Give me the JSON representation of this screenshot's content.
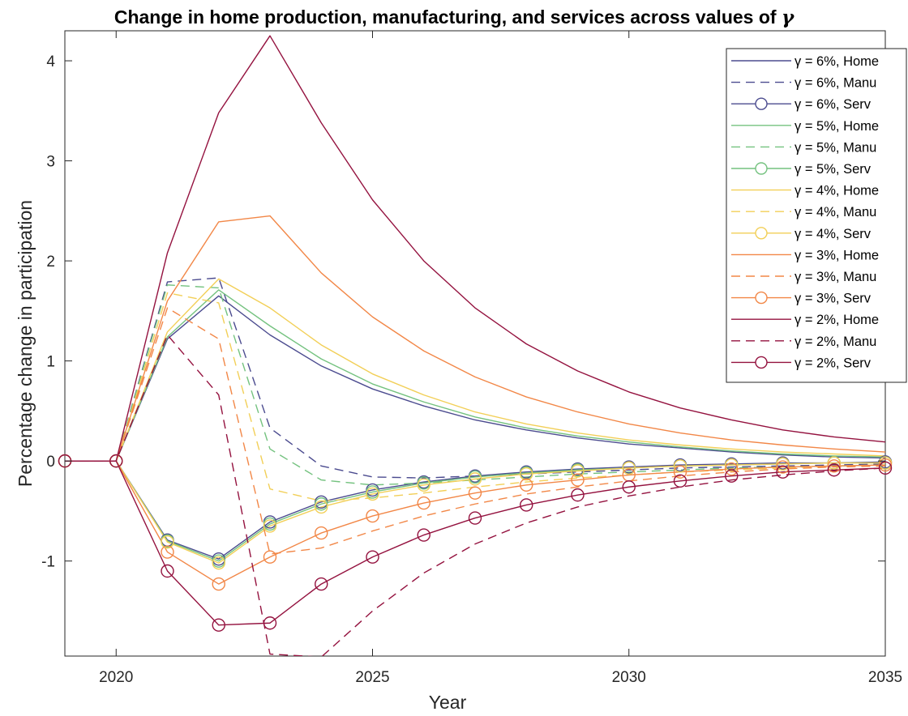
{
  "chart_data": {
    "type": "line",
    "title_prefix": "Change in home production, manufacturing, and services across values of",
    "title_symbol": "γ",
    "xlabel": "Year",
    "ylabel": "Percentage change in participation",
    "xlim": [
      2019,
      2035
    ],
    "ylim": [
      -1.95,
      4.3
    ],
    "xticks": [
      2020,
      2025,
      2030,
      2035
    ],
    "yticks": [
      -1,
      0,
      1,
      2,
      3,
      4
    ],
    "grid": false,
    "legend_position": "top-right",
    "x": [
      2019,
      2020,
      2021,
      2022,
      2023,
      2024,
      2025,
      2026,
      2027,
      2028,
      2029,
      2030,
      2031,
      2032,
      2033,
      2034,
      2035
    ],
    "series": [
      {
        "name": "γ = 6%, Home",
        "color": "#4b4b8f",
        "style": "solid",
        "marker": "none",
        "values": [
          0,
          0,
          1.22,
          1.65,
          1.26,
          0.95,
          0.72,
          0.55,
          0.41,
          0.31,
          0.23,
          0.17,
          0.13,
          0.09,
          0.06,
          0.04,
          0.03
        ]
      },
      {
        "name": "γ = 6%, Manu",
        "color": "#4b4b8f",
        "style": "dashed",
        "marker": "none",
        "values": [
          0,
          0,
          1.79,
          1.83,
          0.33,
          -0.05,
          -0.16,
          -0.17,
          -0.15,
          -0.13,
          -0.11,
          -0.09,
          -0.07,
          -0.06,
          -0.05,
          -0.04,
          -0.03
        ]
      },
      {
        "name": "γ = 6%, Serv",
        "color": "#4b4b8f",
        "style": "solid",
        "marker": "circle",
        "values": [
          0,
          0,
          -0.79,
          -0.98,
          -0.61,
          -0.41,
          -0.29,
          -0.21,
          -0.15,
          -0.11,
          -0.08,
          -0.06,
          -0.04,
          -0.03,
          -0.02,
          -0.02,
          -0.01
        ]
      },
      {
        "name": "γ = 5%, Home",
        "color": "#74c27f",
        "style": "solid",
        "marker": "none",
        "values": [
          0,
          0,
          1.24,
          1.71,
          1.35,
          1.02,
          0.77,
          0.59,
          0.44,
          0.33,
          0.25,
          0.19,
          0.14,
          0.1,
          0.07,
          0.05,
          0.04
        ]
      },
      {
        "name": "γ = 5%, Manu",
        "color": "#74c27f",
        "style": "dashed",
        "marker": "none",
        "values": [
          0,
          0,
          1.76,
          1.73,
          0.12,
          -0.19,
          -0.24,
          -0.22,
          -0.19,
          -0.16,
          -0.13,
          -0.11,
          -0.09,
          -0.07,
          -0.06,
          -0.05,
          -0.04
        ]
      },
      {
        "name": "γ = 5%, Serv",
        "color": "#74c27f",
        "style": "solid",
        "marker": "circle",
        "values": [
          0,
          0,
          -0.8,
          -1.0,
          -0.63,
          -0.43,
          -0.31,
          -0.22,
          -0.16,
          -0.12,
          -0.09,
          -0.07,
          -0.05,
          -0.04,
          -0.03,
          -0.02,
          -0.02
        ]
      },
      {
        "name": "γ = 4%, Home",
        "color": "#f2cf57",
        "style": "solid",
        "marker": "none",
        "values": [
          0,
          0,
          1.29,
          1.82,
          1.53,
          1.16,
          0.87,
          0.66,
          0.49,
          0.37,
          0.28,
          0.21,
          0.16,
          0.12,
          0.09,
          0.07,
          0.05
        ]
      },
      {
        "name": "γ = 4%, Manu",
        "color": "#f2cf57",
        "style": "dashed",
        "marker": "none",
        "values": [
          0,
          0,
          1.68,
          1.58,
          -0.28,
          -0.4,
          -0.37,
          -0.32,
          -0.26,
          -0.21,
          -0.17,
          -0.14,
          -0.11,
          -0.09,
          -0.07,
          -0.05,
          -0.04
        ]
      },
      {
        "name": "γ = 4%, Serv",
        "color": "#f2cf57",
        "style": "solid",
        "marker": "circle",
        "values": [
          0,
          0,
          -0.81,
          -1.02,
          -0.65,
          -0.46,
          -0.33,
          -0.24,
          -0.18,
          -0.13,
          -0.1,
          -0.07,
          -0.05,
          -0.04,
          -0.03,
          -0.02,
          -0.02
        ]
      },
      {
        "name": "γ = 3%, Home",
        "color": "#f28747",
        "style": "solid",
        "marker": "none",
        "values": [
          0,
          0,
          1.6,
          2.39,
          2.45,
          1.88,
          1.44,
          1.1,
          0.84,
          0.64,
          0.49,
          0.37,
          0.28,
          0.21,
          0.16,
          0.12,
          0.09
        ]
      },
      {
        "name": "γ = 3%, Manu",
        "color": "#f28747",
        "style": "dashed",
        "marker": "none",
        "values": [
          0,
          0,
          1.53,
          1.22,
          -0.93,
          -0.87,
          -0.7,
          -0.55,
          -0.43,
          -0.33,
          -0.26,
          -0.2,
          -0.15,
          -0.11,
          -0.08,
          -0.06,
          -0.05
        ]
      },
      {
        "name": "γ = 3%, Serv",
        "color": "#f28747",
        "style": "solid",
        "marker": "circle",
        "values": [
          0,
          0,
          -0.91,
          -1.23,
          -0.96,
          -0.72,
          -0.55,
          -0.42,
          -0.32,
          -0.24,
          -0.19,
          -0.14,
          -0.11,
          -0.08,
          -0.06,
          -0.05,
          -0.04
        ]
      },
      {
        "name": "γ = 2%, Home",
        "color": "#94123f",
        "style": "solid",
        "marker": "none",
        "values": [
          0,
          0,
          2.08,
          3.48,
          4.25,
          3.38,
          2.61,
          2.0,
          1.53,
          1.17,
          0.9,
          0.69,
          0.53,
          0.41,
          0.31,
          0.24,
          0.19
        ]
      },
      {
        "name": "γ = 2%, Manu",
        "color": "#94123f",
        "style": "dashed",
        "marker": "none",
        "values": [
          0,
          0,
          1.26,
          0.66,
          -1.93,
          -1.96,
          -1.5,
          -1.12,
          -0.83,
          -0.62,
          -0.46,
          -0.35,
          -0.26,
          -0.19,
          -0.14,
          -0.1,
          -0.07
        ]
      },
      {
        "name": "γ = 2%, Serv",
        "color": "#94123f",
        "style": "solid",
        "marker": "circle",
        "values": [
          0,
          0,
          -1.1,
          -1.64,
          -1.62,
          -1.23,
          -0.96,
          -0.74,
          -0.57,
          -0.44,
          -0.34,
          -0.26,
          -0.2,
          -0.15,
          -0.11,
          -0.09,
          -0.07
        ]
      }
    ]
  }
}
